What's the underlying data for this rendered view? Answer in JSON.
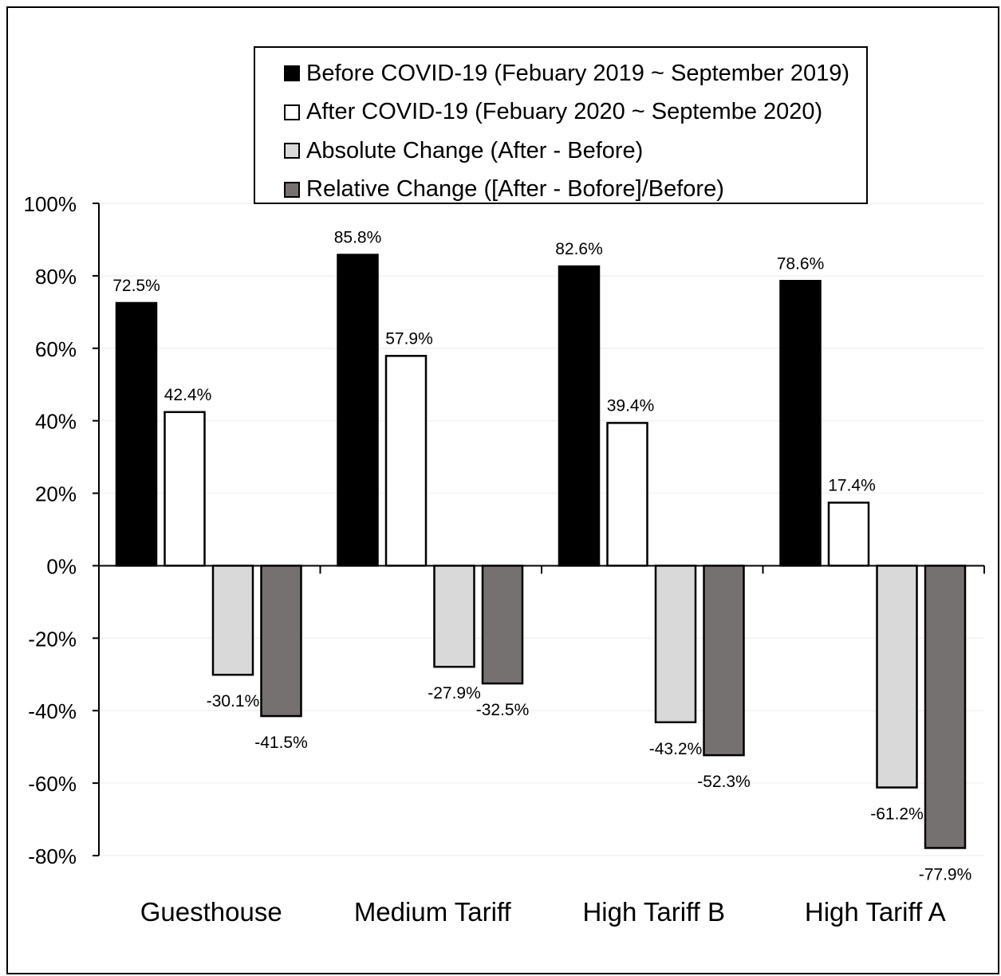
{
  "chart_data": {
    "type": "bar",
    "categories": [
      "Guesthouse",
      "Medium Tariff",
      "High Tariff B",
      "High Tariff A"
    ],
    "series": [
      {
        "name": "Before COVID-19 (Febuary 2019 ~ September 2019)",
        "color": "#000000",
        "values": [
          72.5,
          85.8,
          82.6,
          78.6
        ],
        "labels": [
          "72.5%",
          "85.8%",
          "82.6%",
          "78.6%"
        ]
      },
      {
        "name": "After COVID-19 (Febuary 2020 ~ Septembe 2020)",
        "color": "#ffffff",
        "values": [
          42.4,
          57.9,
          39.4,
          17.4
        ],
        "labels": [
          "42.4%",
          "57.9%",
          "39.4%",
          "17.4%"
        ]
      },
      {
        "name": "Absolute Change (After - Before)",
        "color": "#d9d9d9",
        "values": [
          -30.1,
          -27.9,
          -43.2,
          -61.2
        ],
        "labels": [
          "-30.1%",
          "-27.9%",
          "-43.2%",
          "-61.2%"
        ]
      },
      {
        "name": "Relative Change ([After - Bofore]/Before)",
        "color": "#767171",
        "values": [
          -41.5,
          -32.5,
          -52.3,
          -77.9
        ],
        "labels": [
          "-41.5%",
          "-32.5%",
          "-52.3%",
          "-77.9%"
        ]
      }
    ],
    "ylim": [
      -80,
      100
    ],
    "yticks": [
      100,
      80,
      60,
      40,
      20,
      0,
      -20,
      -40,
      -60,
      -80
    ],
    "ytick_labels": [
      "100%",
      "80%",
      "60%",
      "40%",
      "20%",
      "0%",
      "-20%",
      "-40%",
      "-60%",
      "-80%"
    ],
    "legend_position": "top-center",
    "grid": true
  }
}
